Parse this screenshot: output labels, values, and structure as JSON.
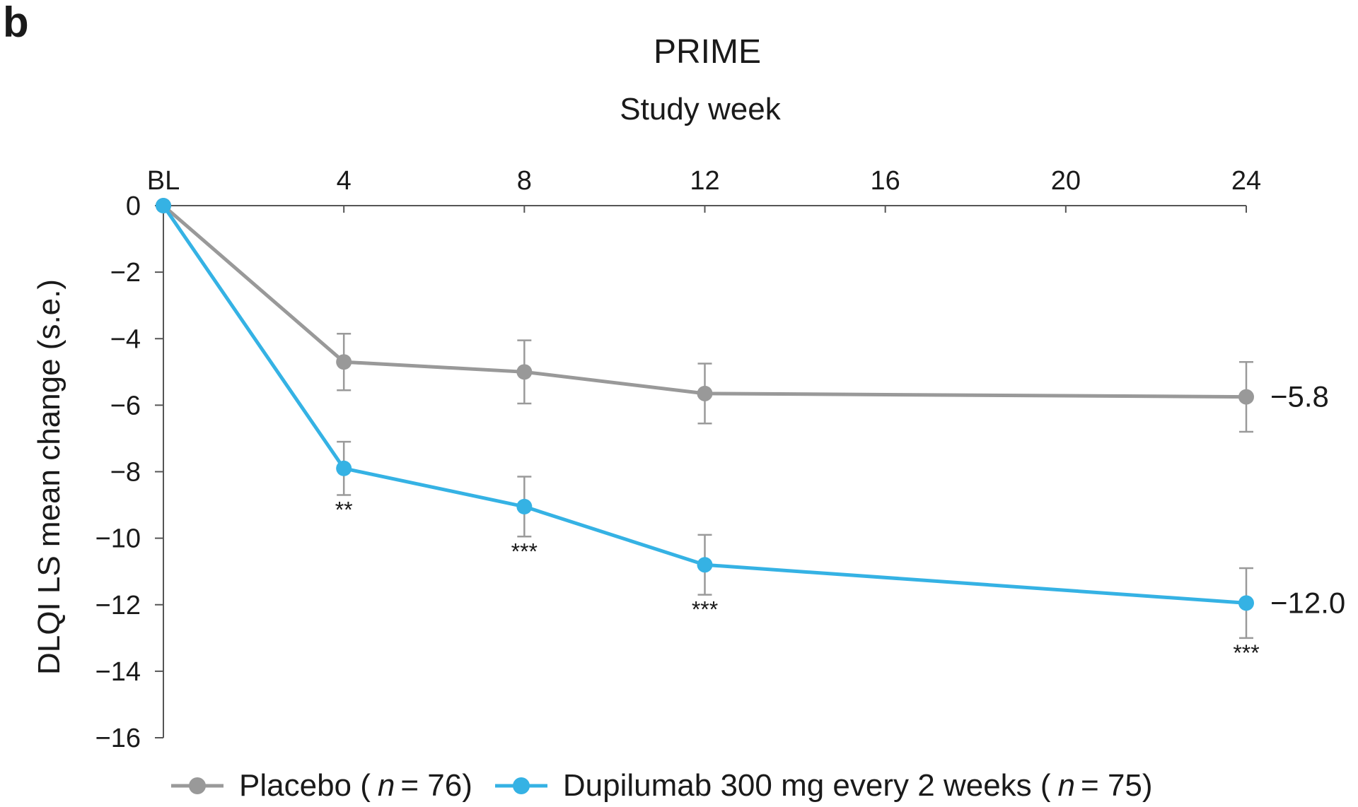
{
  "panel_label": "b",
  "chart_data": {
    "type": "line",
    "title": "PRIME",
    "xlabel": "Study week",
    "ylabel": "DLQI LS mean change (s.e.)",
    "x": [
      0,
      4,
      8,
      12,
      24
    ],
    "xticks": [
      {
        "value": 0,
        "label": "BL"
      },
      {
        "value": 4,
        "label": "4"
      },
      {
        "value": 8,
        "label": "8"
      },
      {
        "value": 12,
        "label": "12"
      },
      {
        "value": 16,
        "label": "16"
      },
      {
        "value": 20,
        "label": "20"
      },
      {
        "value": 24,
        "label": "24"
      }
    ],
    "yticks": [
      {
        "value": 0,
        "label": "0"
      },
      {
        "value": -2,
        "label": "−2"
      },
      {
        "value": -4,
        "label": "−4"
      },
      {
        "value": -6,
        "label": "−6"
      },
      {
        "value": -8,
        "label": "−8"
      },
      {
        "value": -10,
        "label": "−10"
      },
      {
        "value": -12,
        "label": "−12"
      },
      {
        "value": -14,
        "label": "−14"
      },
      {
        "value": -16,
        "label": "−16"
      }
    ],
    "xlim": [
      0,
      24
    ],
    "ylim": [
      -16,
      0
    ],
    "x_axis_position": "top",
    "grid": false,
    "legend_position": "bottom",
    "series": [
      {
        "name": "Placebo",
        "legend_prefix": "Placebo (",
        "n_symbol": "n",
        "n_text": "= 76)",
        "color": "#999999",
        "x": [
          0,
          4,
          8,
          12,
          24
        ],
        "values": [
          0,
          -4.7,
          -5.0,
          -5.65,
          -5.75
        ],
        "err": [
          0,
          0.85,
          0.95,
          0.9,
          1.05
        ],
        "significance": [
          "",
          "",
          "",
          "",
          ""
        ],
        "end_label": "−5.8"
      },
      {
        "name": "Dupilumab 300 mg every 2 weeks",
        "legend_prefix": "Dupilumab 300 mg every 2 weeks (",
        "n_symbol": "n",
        "n_text": "= 75)",
        "color": "#35b2e4",
        "x": [
          0,
          4,
          8,
          12,
          24
        ],
        "values": [
          0,
          -7.9,
          -9.05,
          -10.8,
          -11.95
        ],
        "err": [
          0,
          0.8,
          0.9,
          0.9,
          1.05
        ],
        "significance": [
          "",
          "**",
          "***",
          "***",
          "***"
        ],
        "end_label": "−12.0"
      }
    ]
  }
}
